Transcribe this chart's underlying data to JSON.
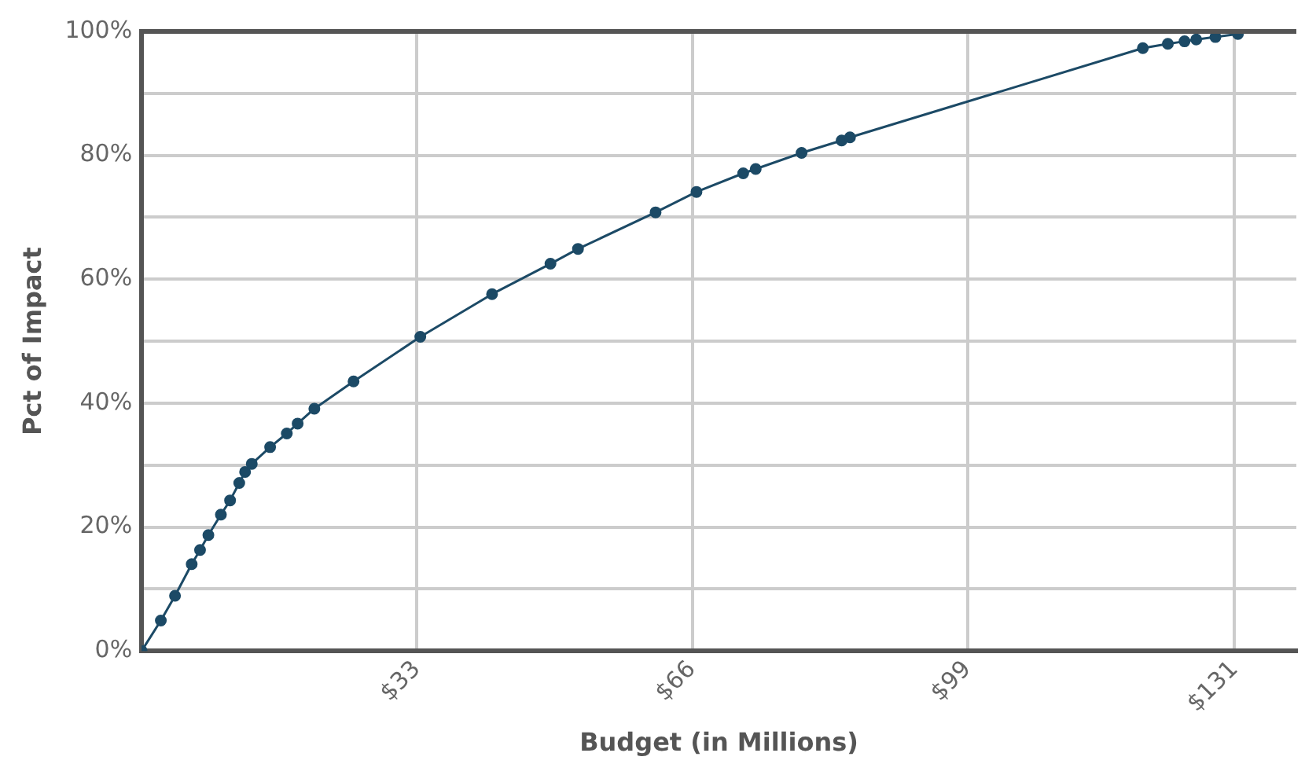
{
  "chart_data": {
    "type": "line",
    "xlabel": "Budget (in Millions)",
    "ylabel": "Pct of Impact",
    "x": [
      0,
      2.3,
      4.0,
      6.0,
      7.0,
      8.0,
      9.5,
      10.6,
      11.7,
      12.4,
      13.2,
      15.4,
      17.4,
      18.7,
      20.7,
      25.4,
      33.4,
      42,
      49,
      52.3,
      61.6,
      66.5,
      72.1,
      73.6,
      79.1,
      83.9,
      84.9,
      120,
      123,
      125,
      126.4,
      128.7,
      131.4
    ],
    "series": [
      {
        "color": "#1c4a66",
        "values": [
          0,
          4.9,
          8.9,
          14,
          16.3,
          18.7,
          22,
          24.3,
          27.1,
          28.9,
          30.2,
          32.9,
          35.1,
          36.7,
          39.1,
          43.5,
          50.7,
          57.6,
          62.5,
          64.9,
          70.8,
          74.1,
          77.1,
          77.8,
          80.4,
          82.4,
          82.9,
          97.3,
          98,
          98.4,
          98.7,
          99.1,
          99.6
        ]
      }
    ],
    "xlim": [
      0,
      138.4
    ],
    "xticks": [
      {
        "value": 33,
        "label": "$33"
      },
      {
        "value": 66,
        "label": "$66"
      },
      {
        "value": 99,
        "label": "$99"
      },
      {
        "value": 131,
        "label": "$131"
      }
    ],
    "ylim": [
      0,
      100
    ],
    "yticks": [
      {
        "value": 0,
        "label": "0%"
      },
      {
        "value": 10,
        "label": null
      },
      {
        "value": 20,
        "label": "20%"
      },
      {
        "value": 30,
        "label": null
      },
      {
        "value": 40,
        "label": "40%"
      },
      {
        "value": 50,
        "label": null
      },
      {
        "value": 60,
        "label": "60%"
      },
      {
        "value": 70,
        "label": null
      },
      {
        "value": 80,
        "label": "80%"
      },
      {
        "value": 90,
        "label": null
      },
      {
        "value": 100,
        "label": "100%"
      }
    ],
    "grid": true,
    "legend": false,
    "marker": "circle",
    "line_style": "solid"
  }
}
